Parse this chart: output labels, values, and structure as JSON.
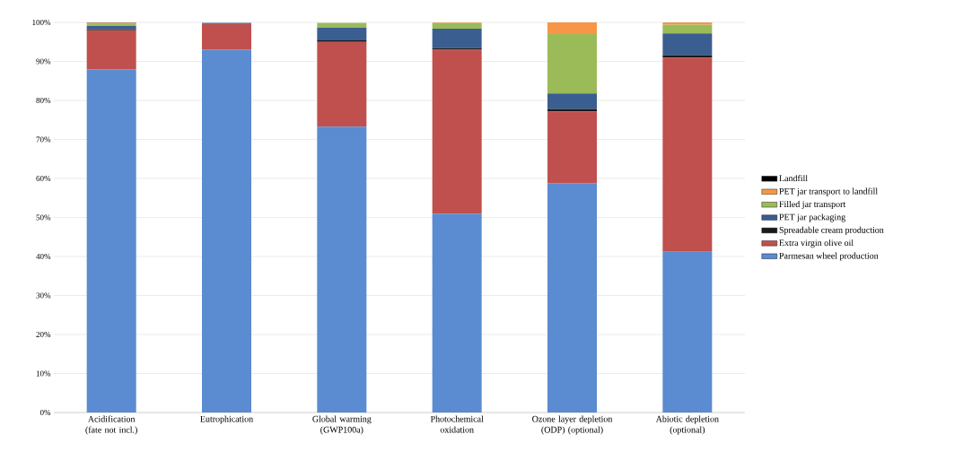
{
  "chart_data": {
    "type": "bar",
    "stacked": true,
    "categories": [
      "Acidification (fate not incl.)",
      "Eutrophication",
      "Global warming (GWP100a)",
      "Photochemical oxidation",
      "Ozone layer depletion (ODP) (optional)",
      "Abiotic depletion (optional)"
    ],
    "series": [
      {
        "name": "Parmesan wheel production",
        "color": "#5b8bd0",
        "values": [
          88,
          93,
          73.3,
          51,
          58.8,
          41.2
        ]
      },
      {
        "name": "Extra virgin olive oil",
        "color": "#c0504d",
        "values": [
          10,
          6.6,
          21.7,
          42,
          18.4,
          49.8
        ]
      },
      {
        "name": "Spreadable cream production",
        "color": "#1a1a1a",
        "values": [
          0.3,
          0.1,
          0.4,
          0.4,
          0.6,
          0.6
        ]
      },
      {
        "name": "PET jar packaging",
        "color": "#3b5e91",
        "values": [
          0.8,
          0.2,
          3.3,
          5,
          4,
          5.6
        ]
      },
      {
        "name": "Filled jar transport",
        "color": "#9bbb59",
        "values": [
          0.6,
          null,
          1.2,
          1.4,
          15.2,
          2.2
        ]
      },
      {
        "name": "PET jar transport to landfill",
        "color": "#f79646",
        "values": [
          0.2,
          0,
          null,
          0.2,
          3,
          0.6
        ]
      },
      {
        "name": "Landfill",
        "color": "#000000",
        "values": [
          0.1,
          0,
          0,
          0,
          0,
          0
        ]
      }
    ],
    "ylim": [
      0,
      100
    ],
    "yticks": [
      {
        "value": 0,
        "label": "0%"
      },
      {
        "value": 10,
        "label": "10%"
      },
      {
        "value": 20,
        "label": "20%"
      },
      {
        "value": 30,
        "label": "30%"
      },
      {
        "value": 40,
        "label": "40%"
      },
      {
        "value": 50,
        "label": "50%"
      },
      {
        "value": 60,
        "label": "60%"
      },
      {
        "value": 70,
        "label": "70%"
      },
      {
        "value": 80,
        "label": "80%"
      },
      {
        "value": 90,
        "label": "90%"
      },
      {
        "value": 100,
        "label": "100%"
      }
    ],
    "grid": "y",
    "legend": "right"
  }
}
